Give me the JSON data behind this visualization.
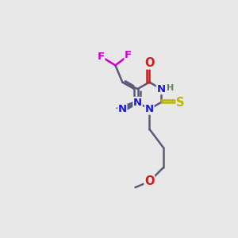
{
  "bg_color": "#e8e8e8",
  "bond_color": "#5a5a7a",
  "atom_colors": {
    "N": "#1a1acc",
    "O": "#cc1a1a",
    "S": "#b8b800",
    "F": "#cc00cc",
    "H": "#608060",
    "C": "#5a5a7a"
  },
  "bond_width": 1.8,
  "figsize": [
    3.0,
    3.0
  ],
  "dpi": 100
}
